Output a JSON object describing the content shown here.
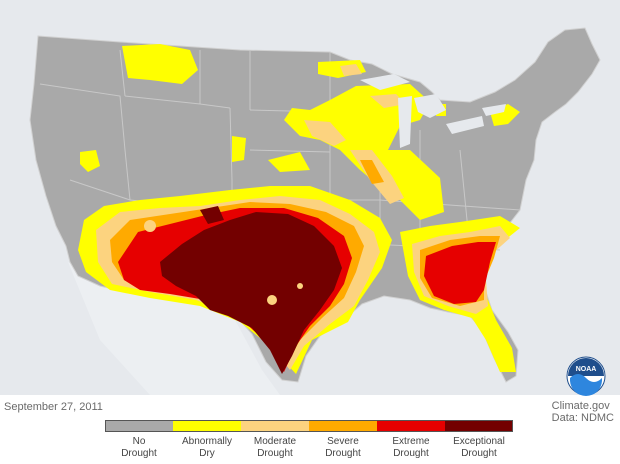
{
  "date": "September 27, 2011",
  "credits": {
    "line1": "Climate.gov",
    "line2": "Data: NDMC"
  },
  "logo_text": "NOAA",
  "legend": [
    {
      "label": "No\nDrought",
      "color": "#a9a9a9"
    },
    {
      "label": "Abnormally\nDry",
      "color": "#ffff00"
    },
    {
      "label": "Moderate\nDrought",
      "color": "#fcd37f"
    },
    {
      "label": "Severe\nDrought",
      "color": "#ffaa00"
    },
    {
      "label": "Extreme\nDrought",
      "color": "#e60000"
    },
    {
      "label": "Exceptional\nDrought",
      "color": "#730000"
    }
  ],
  "colors": {
    "ocean": "#e6e9ed",
    "no_drought": "#a9a9a9",
    "abnormally_dry": "#ffff00",
    "moderate": "#fcd37f",
    "severe": "#ffaa00",
    "extreme": "#e60000",
    "exceptional": "#730000",
    "border": "#d8d8d8"
  }
}
